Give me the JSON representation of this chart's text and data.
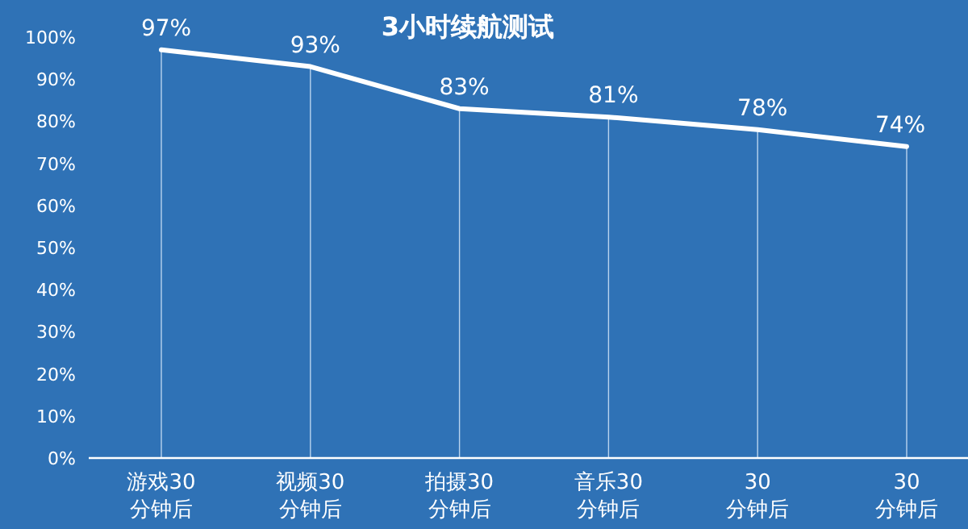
{
  "chart_data": {
    "type": "line",
    "title": "3小时续航测试",
    "categories": [
      "游戏30分钟后",
      "视频30分钟后",
      "拍摄30分钟后",
      "音乐30分钟后",
      "30分钟后",
      "30分钟后"
    ],
    "series": [
      {
        "color": "#ffffff",
        "values": [
          97,
          93,
          83,
          81,
          78,
          74
        ],
        "value_labels": [
          "97%",
          "93%",
          "83%",
          "81%",
          "78%",
          "74%"
        ]
      }
    ],
    "ylim": [
      0,
      100
    ],
    "yticks": [
      {
        "value": 0,
        "label": "0%"
      },
      {
        "value": 10,
        "label": "10%"
      },
      {
        "value": 20,
        "label": "20%"
      },
      {
        "value": 30,
        "label": "30%"
      },
      {
        "value": 40,
        "label": "40%"
      },
      {
        "value": 50,
        "label": "50%"
      },
      {
        "value": 60,
        "label": "60%"
      },
      {
        "value": 70,
        "label": "70%"
      },
      {
        "value": 80,
        "label": "80%"
      },
      {
        "value": 90,
        "label": "90%"
      },
      {
        "value": 100,
        "label": "100%"
      }
    ],
    "grid": "x",
    "marker": "none",
    "line_style": "solid"
  }
}
